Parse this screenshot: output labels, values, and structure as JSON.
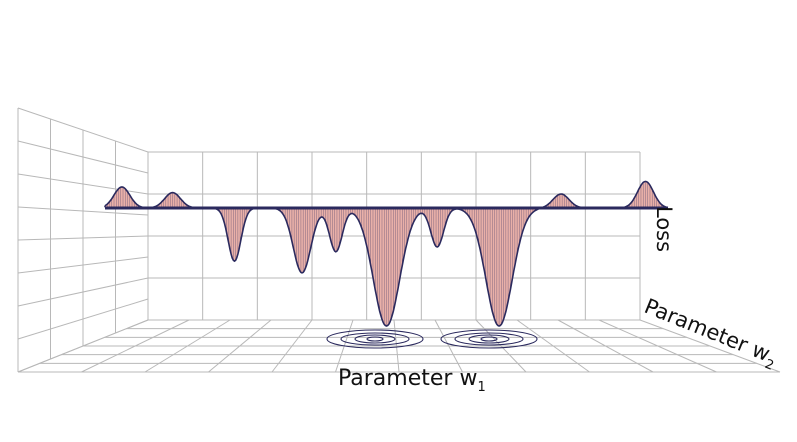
{
  "chart_data": {
    "type": "surface",
    "title": "",
    "xlabel": {
      "main": "Parameter w",
      "sub": "1"
    },
    "ylabel": {
      "main": "Parameter w",
      "sub": "2"
    },
    "zlabel": "Loss",
    "grid": true,
    "surface_color": "#e9b0a8",
    "mesh_color": "#2b2a5e",
    "baseline_loss": 0.0,
    "minima": [
      {
        "w1": 0.23,
        "depth": 0.45
      },
      {
        "w1": 0.35,
        "depth": 0.55
      },
      {
        "w1": 0.41,
        "depth": 0.37
      },
      {
        "w1": 0.5,
        "depth": 1.0
      },
      {
        "w1": 0.59,
        "depth": 0.33
      },
      {
        "w1": 0.7,
        "depth": 1.0
      }
    ],
    "bumps": [
      {
        "w1": 0.03,
        "height": 0.3
      },
      {
        "w1": 0.12,
        "height": 0.22
      },
      {
        "w1": 0.81,
        "height": 0.2
      },
      {
        "w1": 0.96,
        "height": 0.38
      }
    ],
    "contours_under_minima": [
      0.5,
      0.7
    ]
  }
}
